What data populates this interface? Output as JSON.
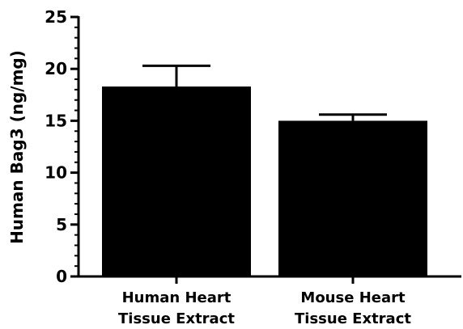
{
  "chart_data": {
    "type": "bar",
    "categories": [
      [
        "Human Heart",
        "Tissue Extract"
      ],
      [
        "Mouse Heart",
        "Tissue Extract"
      ]
    ],
    "values": [
      18.3,
      15.0
    ],
    "error": [
      2.0,
      0.6
    ],
    "title": "",
    "xlabel": "",
    "ylabel": "Human Bag3 (ng/mg)",
    "ylim": [
      0,
      25
    ],
    "yticks": [
      0,
      5,
      10,
      15,
      20,
      25
    ],
    "yticks_minor_step": 1,
    "grid": false,
    "bar_color": "#000000"
  }
}
